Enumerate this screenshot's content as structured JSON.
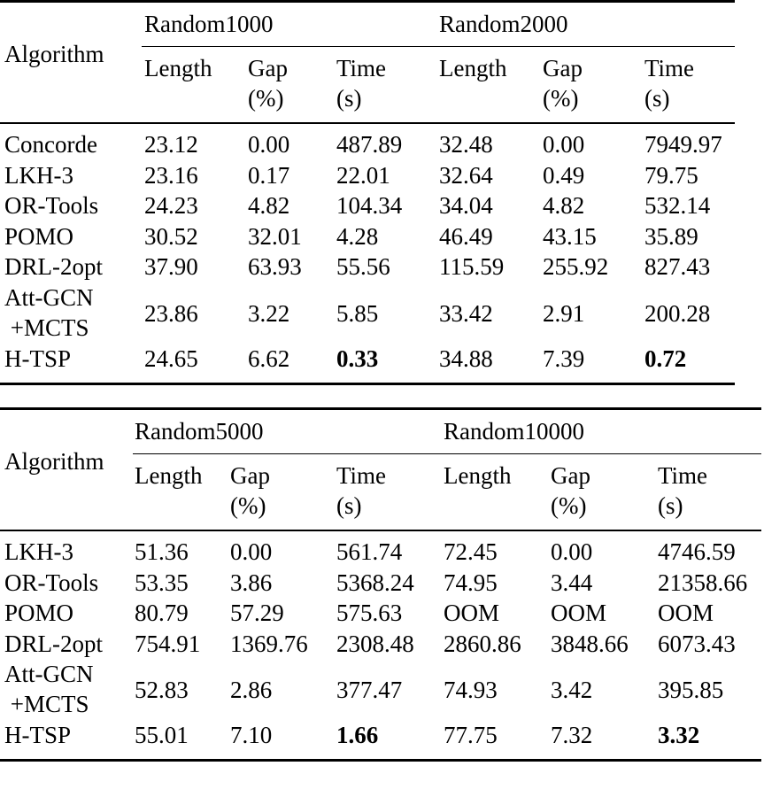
{
  "tables": [
    {
      "algo_header": "Algorithm",
      "groups": [
        "Random1000",
        "Random2000"
      ],
      "col_headers": [
        [
          "Length"
        ],
        [
          "Gap",
          "(%)"
        ],
        [
          "Time",
          "(s)"
        ],
        [
          "Length"
        ],
        [
          "Gap",
          "(%)"
        ],
        [
          "Time",
          "(s)"
        ]
      ],
      "rows": [
        {
          "algo": [
            "Concorde"
          ],
          "cells": [
            "23.12",
            "0.00",
            "487.89",
            "32.48",
            "0.00",
            "7949.97"
          ]
        },
        {
          "algo": [
            "LKH-3"
          ],
          "cells": [
            "23.16",
            "0.17",
            "22.01",
            "32.64",
            "0.49",
            "79.75"
          ]
        },
        {
          "algo": [
            "OR-Tools"
          ],
          "cells": [
            "24.23",
            "4.82",
            "104.34",
            "34.04",
            "4.82",
            "532.14"
          ]
        },
        {
          "algo": [
            "POMO"
          ],
          "cells": [
            "30.52",
            "32.01",
            "4.28",
            "46.49",
            "43.15",
            "35.89"
          ]
        },
        {
          "algo": [
            "DRL-2opt"
          ],
          "cells": [
            "37.90",
            "63.93",
            "55.56",
            "115.59",
            "255.92",
            "827.43"
          ]
        },
        {
          "algo": [
            "Att-GCN",
            "+MCTS"
          ],
          "cells": [
            "23.86",
            "3.22",
            "5.85",
            "33.42",
            "2.91",
            "200.28"
          ]
        },
        {
          "algo": [
            "H-TSP"
          ],
          "cells": [
            "24.65",
            "6.62",
            "0.33",
            "34.88",
            "7.39",
            "0.72"
          ],
          "bold": [
            2,
            5
          ]
        }
      ]
    },
    {
      "algo_header": "Algorithm",
      "groups": [
        "Random5000",
        "Random10000"
      ],
      "col_headers": [
        [
          "Length"
        ],
        [
          "Gap",
          "(%)"
        ],
        [
          "Time",
          "(s)"
        ],
        [
          "Length"
        ],
        [
          "Gap",
          "(%)"
        ],
        [
          "Time",
          "(s)"
        ]
      ],
      "rows": [
        {
          "algo": [
            "LKH-3"
          ],
          "cells": [
            "51.36",
            "0.00",
            "561.74",
            "72.45",
            "0.00",
            "4746.59"
          ]
        },
        {
          "algo": [
            "OR-Tools"
          ],
          "cells": [
            "53.35",
            "3.86",
            "5368.24",
            "74.95",
            "3.44",
            "21358.66"
          ]
        },
        {
          "algo": [
            "POMO"
          ],
          "cells": [
            "80.79",
            "57.29",
            "575.63",
            "OOM",
            "OOM",
            "OOM"
          ]
        },
        {
          "algo": [
            "DRL-2opt"
          ],
          "cells": [
            "754.91",
            "1369.76",
            "2308.48",
            "2860.86",
            "3848.66",
            "6073.43"
          ]
        },
        {
          "algo": [
            "Att-GCN",
            "+MCTS"
          ],
          "cells": [
            "52.83",
            "2.86",
            "377.47",
            "74.93",
            "3.42",
            "395.85"
          ]
        },
        {
          "algo": [
            "H-TSP"
          ],
          "cells": [
            "55.01",
            "7.10",
            "1.66",
            "77.75",
            "7.32",
            "3.32"
          ],
          "bold": [
            2,
            5
          ]
        }
      ]
    }
  ]
}
